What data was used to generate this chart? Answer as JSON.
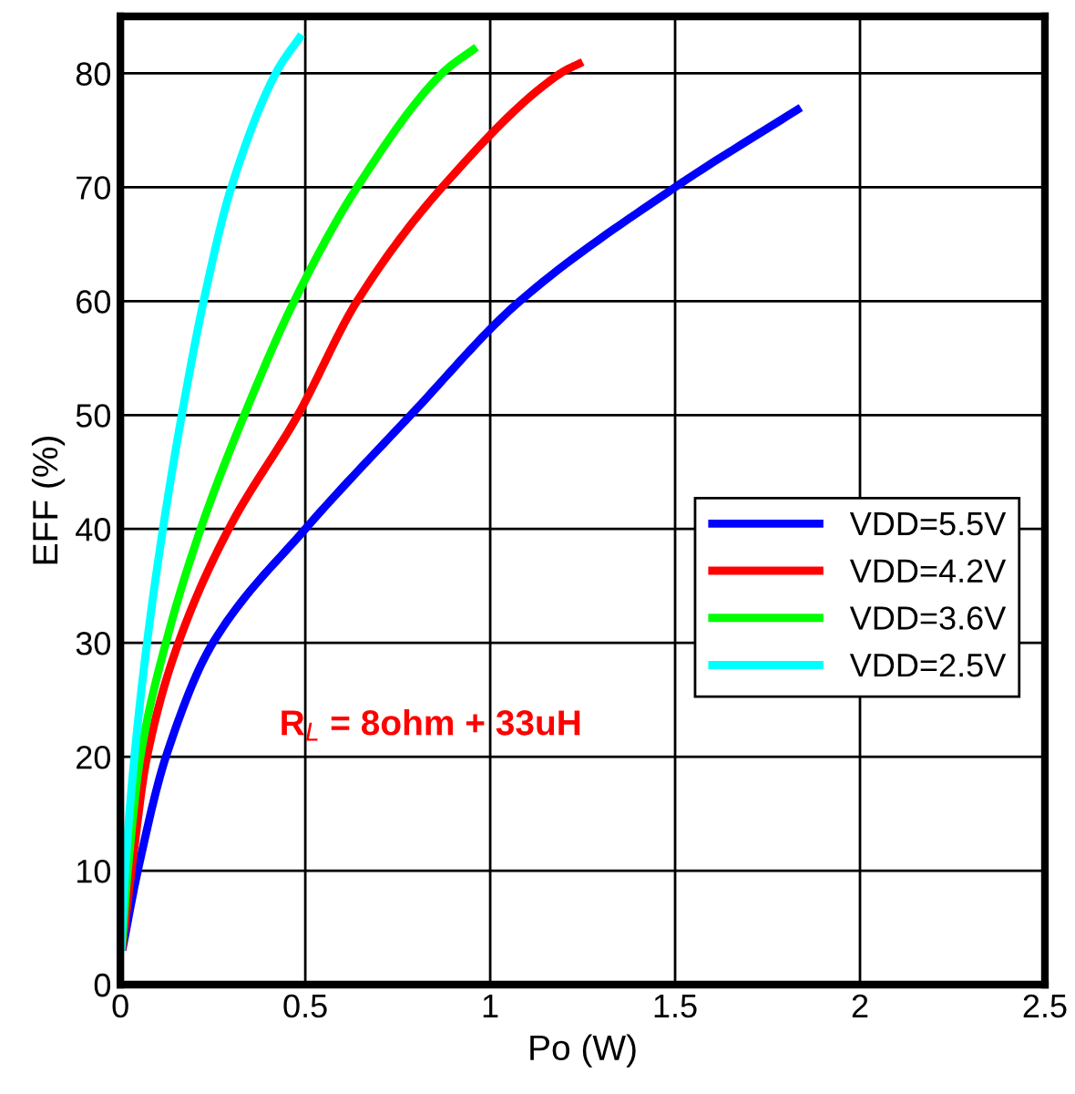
{
  "chart_data": {
    "type": "line",
    "xlabel": "Po (W)",
    "ylabel": "EFF (%)",
    "xlim": [
      0,
      2.5
    ],
    "xticks": [
      0,
      0.5,
      1,
      1.5,
      2,
      2.5
    ],
    "ylim": [
      0,
      85
    ],
    "yticks": [
      0,
      10,
      20,
      30,
      40,
      50,
      60,
      70,
      80
    ],
    "grid": true,
    "legend": "right",
    "marker": "none",
    "line_style": "solid",
    "annotations": [
      "R$_{L}$ = 8ohm + 33uH"
    ],
    "series": [
      {
        "name": "VDD=5.5V",
        "color": "#0000ff",
        "x": [
          0.005,
          0.047,
          0.123,
          0.25,
          0.5,
          0.785,
          1.08,
          1.5,
          1.84
        ],
        "values": [
          3,
          10,
          20,
          30,
          40,
          50,
          60,
          70,
          77
        ]
      },
      {
        "name": "VDD=4.2V",
        "color": "#ff0000",
        "x": [
          0.004,
          0.03,
          0.072,
          0.157,
          0.293,
          0.48,
          0.64,
          0.87,
          1.19,
          1.25
        ],
        "values": [
          3,
          10,
          20,
          30,
          40,
          50,
          60,
          70,
          80,
          81
        ]
      },
      {
        "name": "VDD=3.6V",
        "color": "#00ff00",
        "x": [
          0.003,
          0.02,
          0.054,
          0.123,
          0.217,
          0.335,
          0.47,
          0.64,
          0.87,
          0.963
        ],
        "values": [
          3,
          10,
          20,
          30,
          40,
          50,
          60,
          70,
          80,
          82.3
        ]
      },
      {
        "name": "VDD=2.5V",
        "color": "#00ffff",
        "x": [
          0.002,
          0.013,
          0.038,
          0.072,
          0.115,
          0.166,
          0.225,
          0.3,
          0.42,
          0.49
        ],
        "values": [
          3,
          10,
          20,
          30,
          40,
          50,
          60,
          70,
          80,
          83.4
        ]
      }
    ]
  }
}
